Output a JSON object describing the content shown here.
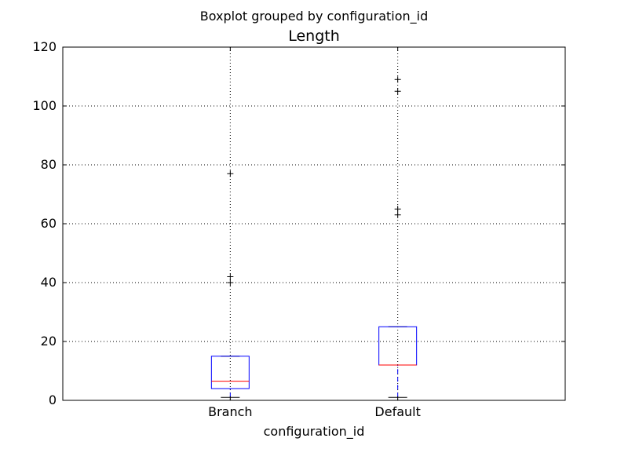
{
  "chart_data": {
    "type": "boxplot",
    "suptitle": "Boxplot grouped by configuration_id",
    "title": "Length",
    "xlabel": "configuration_id",
    "ylabel": "",
    "ylim": [
      0,
      120
    ],
    "yticks": [
      "0",
      "20",
      "40",
      "60",
      "80",
      "100",
      "120"
    ],
    "grid": true,
    "categories": [
      "Branch",
      "Default"
    ],
    "boxes": [
      {
        "category": "Branch",
        "whisker_low": 1,
        "q1": 4,
        "median": 6.5,
        "q3": 15,
        "whisker_high": 15,
        "outliers": [
          40,
          42,
          77
        ]
      },
      {
        "category": "Default",
        "whisker_low": 1,
        "q1": 12,
        "median": 12,
        "q3": 25,
        "whisker_high": 25,
        "outliers": [
          63,
          65,
          105,
          109
        ]
      }
    ],
    "colors": {
      "box": "#0000ff",
      "median": "#ff0000",
      "whisker": "#0000ff",
      "cap": "#000000",
      "flier": "#000000",
      "grid": "#000000"
    }
  }
}
